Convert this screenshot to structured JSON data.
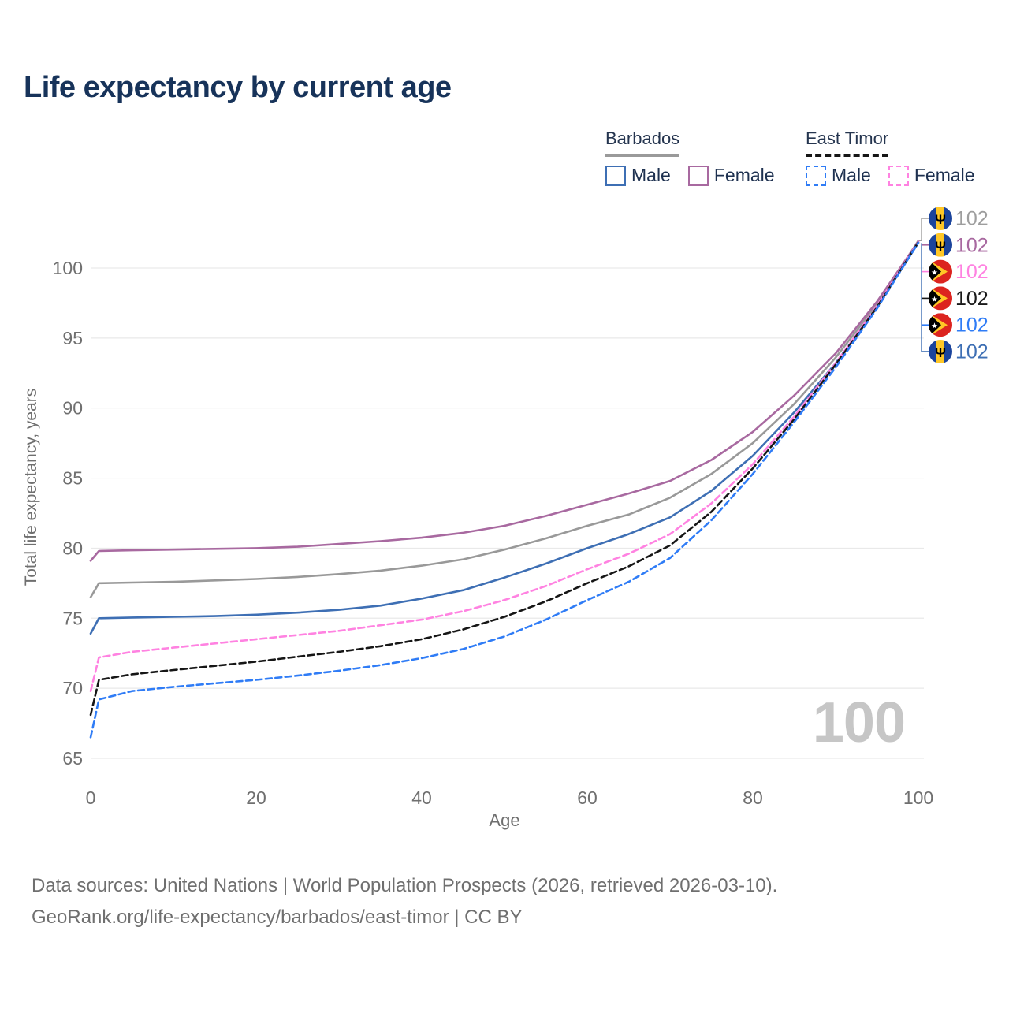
{
  "title": "Life expectancy by current age",
  "watermark": "100",
  "legend": {
    "groups": [
      {
        "name": "Barbados",
        "line_style": "solid",
        "underline_color": "#9a9a9a",
        "items": [
          {
            "label": "Male",
            "color": "#3e6fb4"
          },
          {
            "label": "Female",
            "color": "#a869a0"
          }
        ]
      },
      {
        "name": "East Timor",
        "line_style": "dashed",
        "underline_color": "#161616",
        "items": [
          {
            "label": "Male",
            "color": "#2f7cf6"
          },
          {
            "label": "Female",
            "color": "#ff82e1"
          }
        ]
      }
    ]
  },
  "chart_data": {
    "type": "line",
    "title": "Life expectancy by current age",
    "xlabel": "Age",
    "ylabel": "Total life expectancy, years",
    "xlim": [
      0,
      100
    ],
    "ylim": [
      65,
      103.5
    ],
    "x_ticks": [
      0,
      20,
      40,
      60,
      80,
      100
    ],
    "y_ticks": [
      65,
      70,
      75,
      80,
      85,
      90,
      95,
      100
    ],
    "grid": "horizontal",
    "legend_position": "top-right",
    "x": [
      0,
      1,
      5,
      10,
      15,
      20,
      25,
      30,
      35,
      40,
      45,
      50,
      55,
      60,
      65,
      70,
      75,
      80,
      85,
      90,
      95,
      100
    ],
    "series": [
      {
        "name": "Barbados All",
        "country": "Barbados",
        "sex": "All",
        "color": "#999999",
        "dash": "solid",
        "values": [
          76.5,
          77.5,
          77.55,
          77.6,
          77.7,
          77.8,
          77.95,
          78.15,
          78.4,
          78.75,
          79.2,
          79.9,
          80.7,
          81.6,
          82.4,
          83.6,
          85.3,
          87.5,
          90.3,
          93.6,
          97.4,
          101.95
        ]
      },
      {
        "name": "Barbados Female",
        "country": "Barbados",
        "sex": "Female",
        "color": "#a869a0",
        "dash": "solid",
        "values": [
          79.1,
          79.8,
          79.85,
          79.9,
          79.95,
          80.0,
          80.1,
          80.3,
          80.5,
          80.75,
          81.1,
          81.6,
          82.3,
          83.1,
          83.9,
          84.8,
          86.3,
          88.3,
          90.9,
          93.9,
          97.6,
          101.9
        ]
      },
      {
        "name": "Barbados Male",
        "country": "Barbados",
        "sex": "Male",
        "color": "#3e6fb4",
        "dash": "solid",
        "values": [
          73.9,
          75.0,
          75.05,
          75.1,
          75.15,
          75.25,
          75.4,
          75.6,
          75.9,
          76.4,
          77.0,
          77.9,
          78.9,
          80.0,
          81.0,
          82.2,
          84.1,
          86.6,
          89.7,
          93.2,
          97.2,
          101.8
        ]
      },
      {
        "name": "East Timor Female",
        "country": "East Timor",
        "sex": "Female",
        "color": "#ff82e1",
        "dash": "dashed",
        "values": [
          69.8,
          72.2,
          72.6,
          72.9,
          73.2,
          73.5,
          73.8,
          74.1,
          74.5,
          74.9,
          75.5,
          76.3,
          77.3,
          78.5,
          79.6,
          81.0,
          83.2,
          86.0,
          89.4,
          93.2,
          97.3,
          101.88
        ]
      },
      {
        "name": "East Timor All",
        "country": "East Timor",
        "sex": "All",
        "color": "#161616",
        "dash": "dashed",
        "values": [
          68.1,
          70.6,
          71.0,
          71.3,
          71.6,
          71.9,
          72.25,
          72.6,
          73.0,
          73.5,
          74.2,
          75.1,
          76.2,
          77.5,
          78.7,
          80.2,
          82.6,
          85.7,
          89.2,
          93.1,
          97.2,
          101.85
        ]
      },
      {
        "name": "East Timor Male",
        "country": "East Timor",
        "sex": "Male",
        "color": "#2f7cf6",
        "dash": "dashed",
        "values": [
          66.5,
          69.2,
          69.8,
          70.1,
          70.35,
          70.6,
          70.9,
          71.25,
          71.65,
          72.15,
          72.8,
          73.7,
          74.9,
          76.3,
          77.6,
          79.3,
          82.0,
          85.3,
          89.0,
          92.9,
          97.1,
          101.82
        ]
      }
    ],
    "end_labels": [
      {
        "flag": "barbados",
        "value": "102",
        "color": "#9e9e9e",
        "series": "Barbados All"
      },
      {
        "flag": "barbados",
        "value": "102",
        "color": "#a869a0",
        "series": "Barbados Female"
      },
      {
        "flag": "east-timor",
        "value": "102",
        "color": "#ff82e1",
        "series": "East Timor Female"
      },
      {
        "flag": "east-timor",
        "value": "102",
        "color": "#1a1a1a",
        "series": "East Timor All"
      },
      {
        "flag": "east-timor",
        "value": "102",
        "color": "#2f7cf6",
        "series": "East Timor Male"
      },
      {
        "flag": "barbados",
        "value": "102",
        "color": "#3e6fb4",
        "series": "Barbados Male"
      }
    ]
  },
  "icons": {
    "barbados_flag": {
      "blue": "#1b449c",
      "gold": "#ffc726",
      "trident": "#000000"
    },
    "east_timor_flag": {
      "red": "#dc241f",
      "gold": "#ffc726",
      "black": "#000000",
      "star": "#ffffff"
    }
  },
  "footer": {
    "line1": "Data sources: United Nations | World Population Prospects (2026, retrieved 2026-03-10).",
    "line2": "GeoRank.org/life-expectancy/barbados/east-timor | CC BY"
  }
}
